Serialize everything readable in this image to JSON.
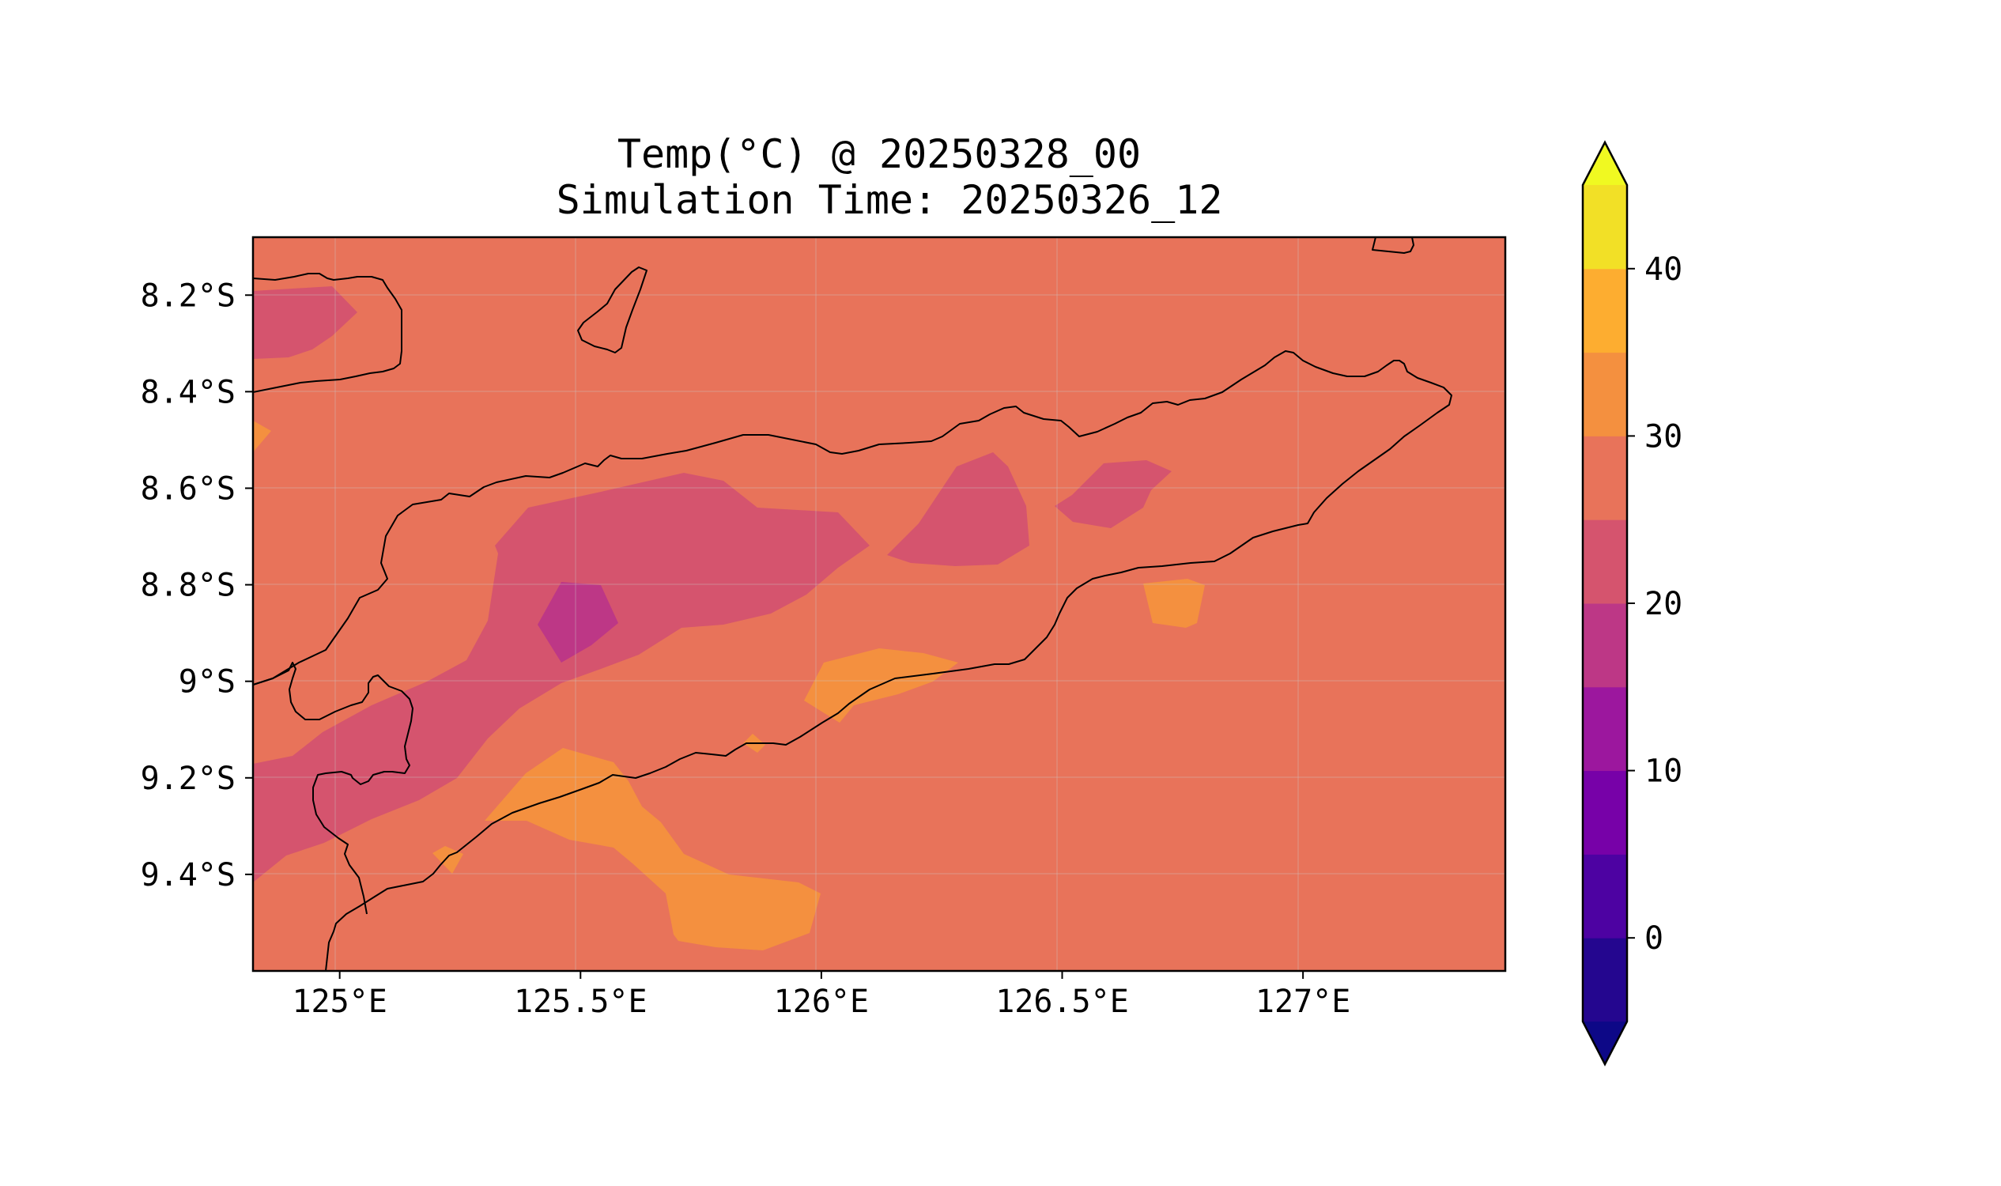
{
  "title": {
    "line1": "Temp(°C) @ 20250328_00",
    "line2": "Simulation Time: 20250326_12"
  },
  "map": {
    "type": "filled-contour",
    "lon_range": [
      124.82,
      127.42
    ],
    "lat_range": [
      -9.6,
      -8.08
    ],
    "background_level_color": "#e8735a",
    "x_ticks": [
      {
        "value": 125.0,
        "label": "125°E"
      },
      {
        "value": 125.5,
        "label": "125.5°E"
      },
      {
        "value": 126.0,
        "label": "126°E"
      },
      {
        "value": 126.5,
        "label": "126.5°E"
      },
      {
        "value": 127.0,
        "label": "127°E"
      }
    ],
    "y_ticks": [
      {
        "value": -8.2,
        "label": "8.2°S"
      },
      {
        "value": -8.4,
        "label": "8.4°S"
      },
      {
        "value": -8.6,
        "label": "8.6°S"
      },
      {
        "value": -8.8,
        "label": "8.8°S"
      },
      {
        "value": -9.0,
        "label": "9°S"
      },
      {
        "value": -9.2,
        "label": "9.2°S"
      },
      {
        "value": -9.4,
        "label": "9.4°S"
      }
    ],
    "grid": true
  },
  "colorbar": {
    "levels": [
      -5,
      0,
      5,
      10,
      15,
      20,
      25,
      30,
      35,
      40,
      45
    ],
    "colors": [
      "#24068f",
      "#4d02a2",
      "#7701a8",
      "#9c179e",
      "#bd3786",
      "#d5546e",
      "#e8735a",
      "#f4903f",
      "#fdad30",
      "#f2e026"
    ],
    "under_color": "#0d0887",
    "over_color": "#f0f921",
    "extend": "both",
    "ticks": [
      {
        "value": 0,
        "label": "0"
      },
      {
        "value": 10,
        "label": "10"
      },
      {
        "value": 20,
        "label": "20"
      },
      {
        "value": 30,
        "label": "30"
      },
      {
        "value": 40,
        "label": "40"
      }
    ]
  }
}
